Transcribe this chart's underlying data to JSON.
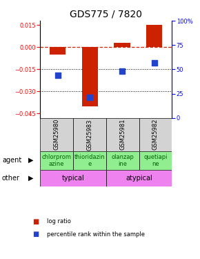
{
  "title": "GDS775 / 7820",
  "samples": [
    "GSM25980",
    "GSM25983",
    "GSM25981",
    "GSM25982"
  ],
  "log_ratios": [
    -0.005,
    -0.04,
    0.003,
    0.015
  ],
  "percentile_ranks": [
    44,
    21,
    48,
    57
  ],
  "agents": [
    "chlorprom\nazine",
    "thioridazin\ne",
    "olanzap\nine",
    "quetiapi\nne"
  ],
  "agent_color": "#90ee90",
  "other_groups": [
    [
      "typical",
      2
    ],
    [
      "atypical",
      2
    ]
  ],
  "other_color": "#ee82ee",
  "ylim_left": [
    -0.048,
    0.018
  ],
  "ylim_right": [
    0,
    100
  ],
  "yticks_left": [
    -0.045,
    -0.03,
    -0.015,
    0,
    0.015
  ],
  "yticks_right": [
    0,
    25,
    50,
    75,
    100
  ],
  "bar_color": "#cc2200",
  "dot_color": "#2244cc",
  "hline_y": 0,
  "dotted_lines": [
    -0.015,
    -0.03
  ],
  "bar_width": 0.5,
  "dot_size": 40,
  "title_fontsize": 10,
  "tick_fontsize": 6,
  "label_fontsize": 7,
  "legend_fontsize": 6,
  "agent_fontsize": 6,
  "other_fontsize": 7,
  "sample_fontsize": 6
}
